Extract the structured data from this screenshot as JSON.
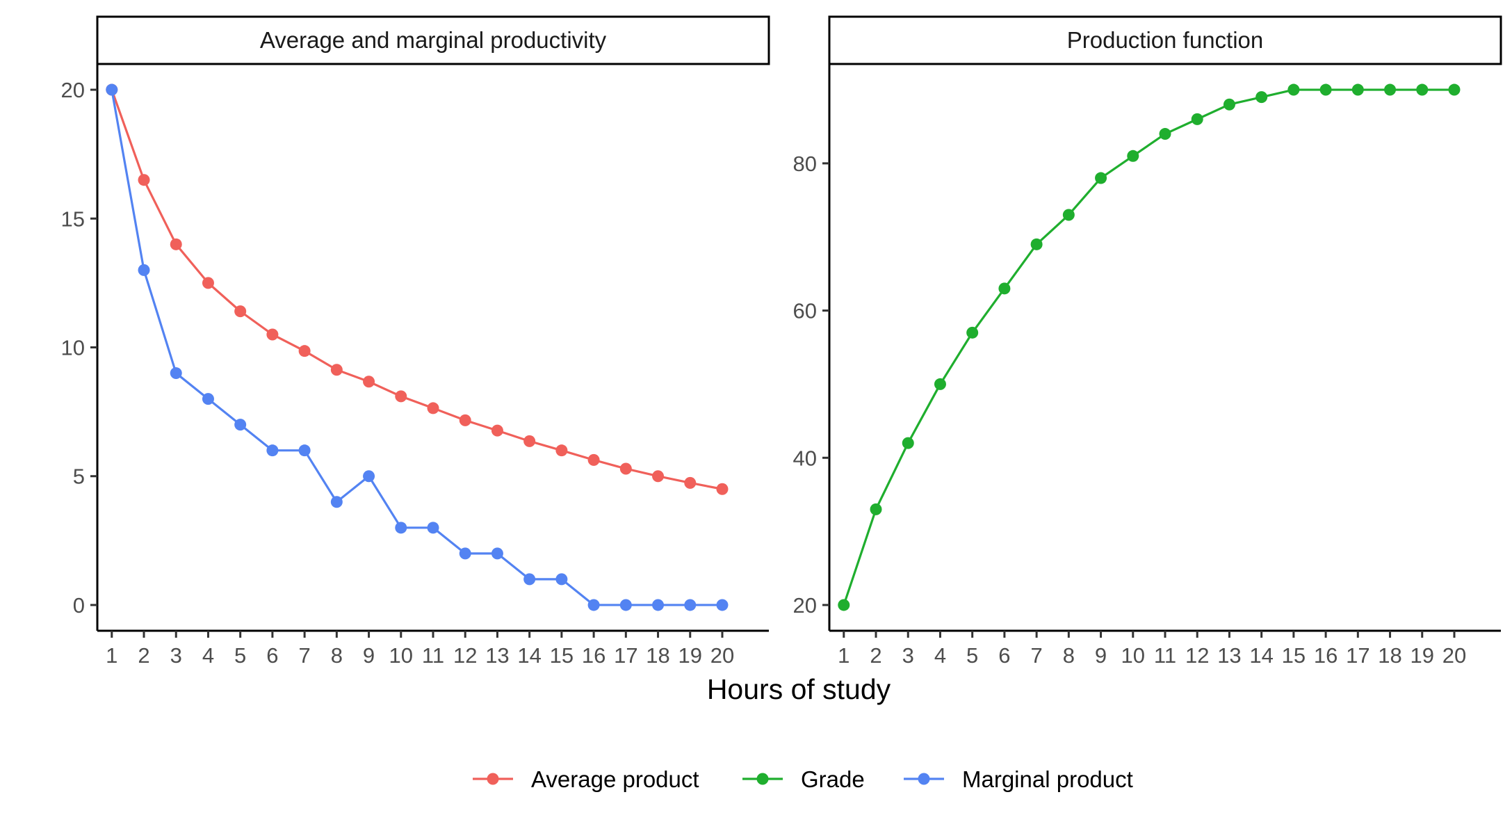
{
  "xlabel": "Hours of study",
  "legend": {
    "placement": "bottom",
    "items": [
      {
        "name": "Average product",
        "color": "#F0605A"
      },
      {
        "name": "Grade",
        "color": "#1FAE2E"
      },
      {
        "name": "Marginal product",
        "color": "#5383F2"
      }
    ]
  },
  "chart_data": [
    {
      "type": "line",
      "title": "Average and marginal productivity",
      "x": [
        1,
        2,
        3,
        4,
        5,
        6,
        7,
        8,
        9,
        10,
        11,
        12,
        13,
        14,
        15,
        16,
        17,
        18,
        19,
        20
      ],
      "xlim": [
        0.55,
        21.45
      ],
      "ylim": [
        -1,
        21
      ],
      "yticks": [
        0,
        5,
        10,
        15,
        20
      ],
      "grid": false,
      "series": [
        {
          "name": "Average product",
          "color": "#F0605A",
          "values": [
            20,
            16.5,
            14,
            12.5,
            11.4,
            10.5,
            9.86,
            9.13,
            8.67,
            8.1,
            7.64,
            7.17,
            6.77,
            6.36,
            6,
            5.63,
            5.29,
            5,
            4.74,
            4.5
          ]
        },
        {
          "name": "Marginal product",
          "color": "#5383F2",
          "values": [
            20,
            13,
            9,
            8,
            7,
            6,
            6,
            4,
            5,
            3,
            3,
            2,
            2,
            1,
            1,
            0,
            0,
            0,
            0,
            0
          ]
        }
      ]
    },
    {
      "type": "line",
      "title": "Production function",
      "x": [
        1,
        2,
        3,
        4,
        5,
        6,
        7,
        8,
        9,
        10,
        11,
        12,
        13,
        14,
        15,
        16,
        17,
        18,
        19,
        20
      ],
      "xlim": [
        0.55,
        21.45
      ],
      "ylim": [
        16.5,
        93.5
      ],
      "yticks": [
        20,
        40,
        60,
        80
      ],
      "grid": false,
      "series": [
        {
          "name": "Grade",
          "color": "#1FAE2E",
          "values": [
            20,
            33,
            42,
            50,
            57,
            63,
            69,
            73,
            78,
            81,
            84,
            86,
            88,
            89,
            90,
            90,
            90,
            90,
            90,
            90
          ]
        }
      ]
    }
  ]
}
